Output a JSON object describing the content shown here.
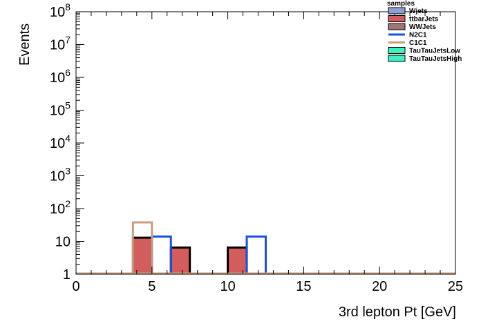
{
  "chart_data": {
    "type": "bar",
    "xlabel": "3rd lepton Pt [GeV]",
    "ylabel": "Events",
    "xlim": [
      0,
      25
    ],
    "ylim": [
      1,
      100000000
    ],
    "yscale": "log",
    "grid": false,
    "legend_placement": "top-right",
    "legend_title": "samples",
    "x_ticks": [
      {
        "value": 0,
        "label": "0"
      },
      {
        "value": 5,
        "label": "5"
      },
      {
        "value": 10,
        "label": "10"
      },
      {
        "value": 15,
        "label": "15"
      },
      {
        "value": 20,
        "label": "20"
      },
      {
        "value": 25,
        "label": "25"
      }
    ],
    "y_ticks": [
      {
        "value": 1,
        "base": "1",
        "exp": ""
      },
      {
        "value": 10,
        "base": "10",
        "exp": ""
      },
      {
        "value": 100,
        "base": "10",
        "exp": "2"
      },
      {
        "value": 1000,
        "base": "10",
        "exp": "3"
      },
      {
        "value": 10000,
        "base": "10",
        "exp": "4"
      },
      {
        "value": 100000,
        "base": "10",
        "exp": "5"
      },
      {
        "value": 1000000,
        "base": "10",
        "exp": "6"
      },
      {
        "value": 10000000,
        "base": "10",
        "exp": "7"
      },
      {
        "value": 100000000,
        "base": "10",
        "exp": "8"
      }
    ],
    "stacked_bins": [
      {
        "x0": 3.75,
        "x1": 5.0,
        "value": 13
      },
      {
        "x0": 6.25,
        "x1": 7.5,
        "value": 6.5
      },
      {
        "x0": 10.0,
        "x1": 11.25,
        "value": 6.5
      }
    ],
    "series": [
      {
        "name": "Wjets",
        "kind": "fill",
        "fill": "#8ea0cf",
        "stroke": "#000000"
      },
      {
        "name": "ttbarJets",
        "kind": "fill",
        "fill": "#d35c5c",
        "stroke": "#000000"
      },
      {
        "name": "WWJets",
        "kind": "fill",
        "fill": "#a17575",
        "stroke": "#000000"
      },
      {
        "name": "N2C1",
        "kind": "line",
        "stroke": "#1650e6",
        "bins": [
          {
            "x0": 5.0,
            "x1": 6.25,
            "value": 14
          },
          {
            "x0": 11.25,
            "x1": 12.5,
            "value": 14
          }
        ]
      },
      {
        "name": "C1C1",
        "kind": "line",
        "stroke": "#c89c7e",
        "bins": [
          {
            "x0": 3.75,
            "x1": 5.0,
            "value": 38
          }
        ]
      },
      {
        "name": "TauTauJetsLow",
        "kind": "fill",
        "fill": "#3cf2c0",
        "stroke": "#000000"
      },
      {
        "name": "TauTauJetsHigh",
        "kind": "fill",
        "fill": "#3cf2c0",
        "stroke": "#000000"
      }
    ]
  }
}
